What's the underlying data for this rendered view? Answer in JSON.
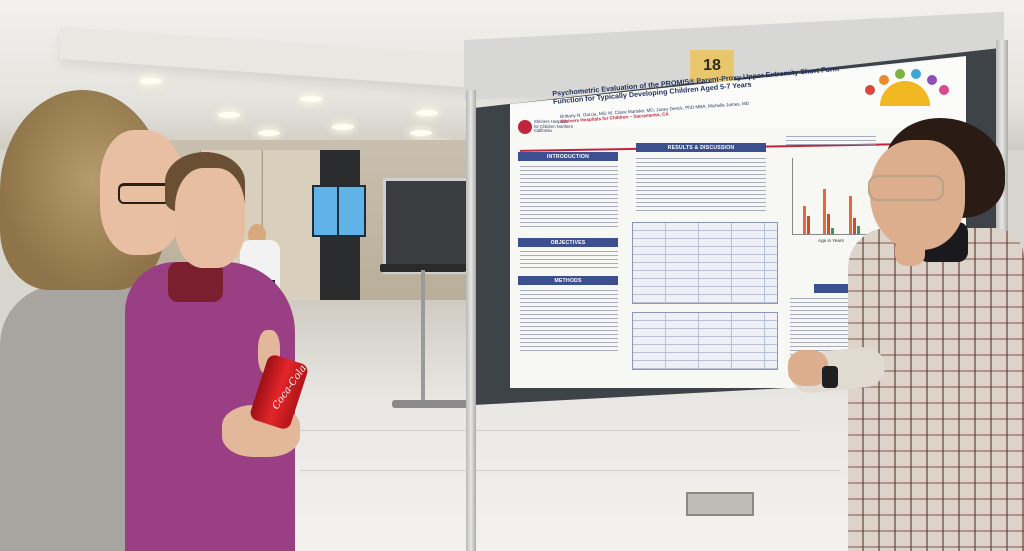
{
  "scene": {
    "description_labels": {}
  },
  "board": {
    "number": "18"
  },
  "poster": {
    "title": "Psychometric Evaluation of the PROMIS® Parent-Proxy Upper Extremity Short Form Function for Typically Developing Children Aged 5-7 Years",
    "authors": "Brittany N. Garcia, MS; M. Claire Manske, MD; Janey Denck, PhD MBA; Michelle James, MD",
    "institution": "Shriners Hospitals for Children – Sacramento, CA",
    "logo_text": "Shriners Hospitals for Children Northern California",
    "sections_left": [
      "INTRODUCTION",
      "OBJECTIVES",
      "METHODS"
    ],
    "sections_middle": [
      "RESULTS & DISCUSSION"
    ],
    "sections_right": [
      "CONCLUSIONS"
    ],
    "chart_axis_label": "Age in Years"
  },
  "colors": {
    "poster_header": "#3c4f8e",
    "accent_red": "#c2253b",
    "board_number_bg": "#e8c76c",
    "can_red": "#e3262b"
  },
  "can": {
    "label": "Coca-Cola"
  }
}
